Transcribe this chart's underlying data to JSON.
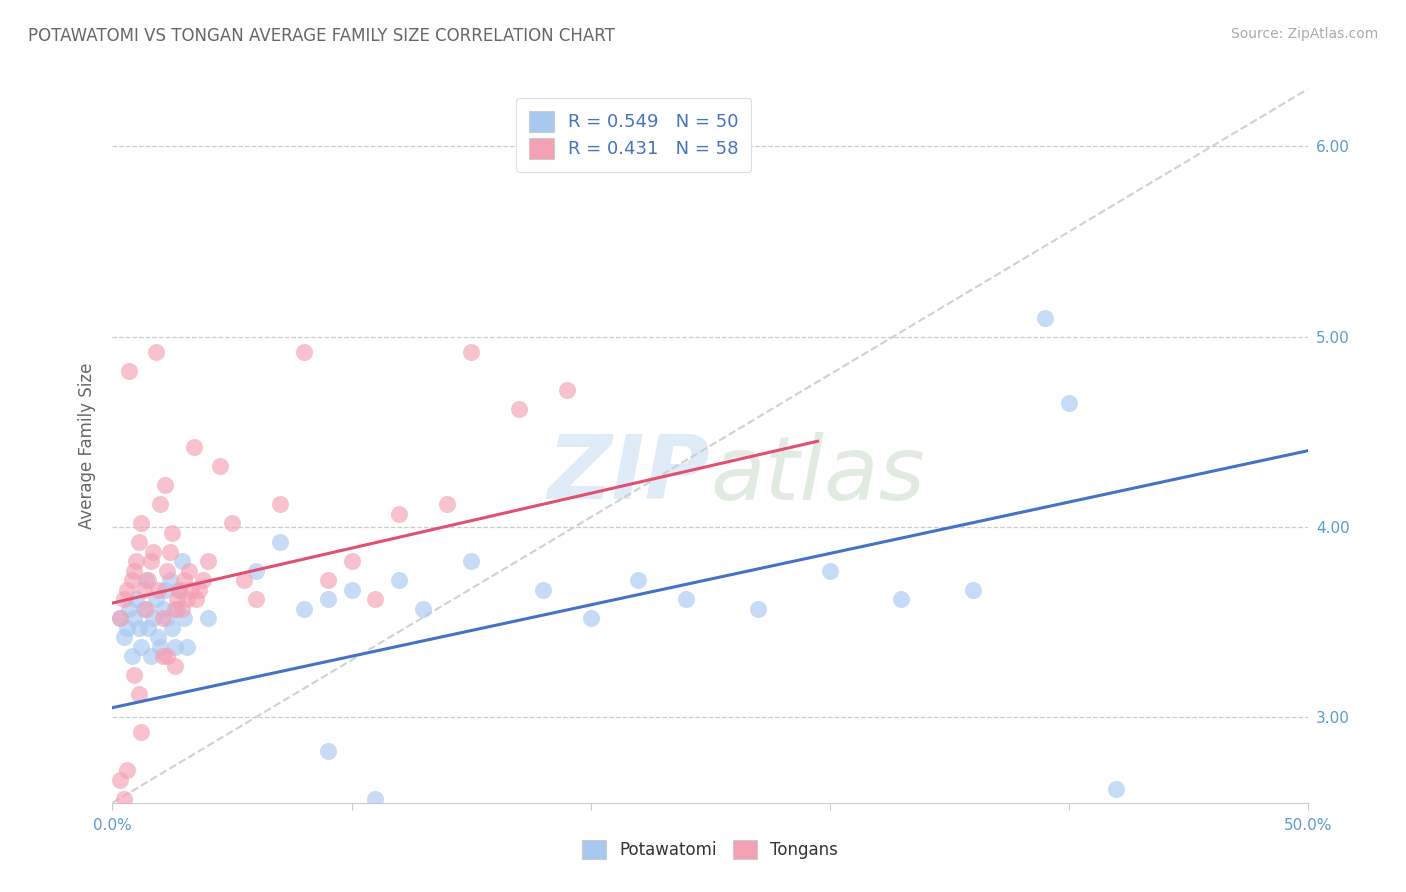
{
  "title": "POTAWATOMI VS TONGAN AVERAGE FAMILY SIZE CORRELATION CHART",
  "source_text": "Source: ZipAtlas.com",
  "ylabel": "Average Family Size",
  "xmin": 0.0,
  "xmax": 0.5,
  "ymin": 2.55,
  "ymax": 6.3,
  "yticks": [
    3.0,
    4.0,
    5.0,
    6.0
  ],
  "xticks": [
    0.0,
    0.1,
    0.2,
    0.3,
    0.4,
    0.5
  ],
  "xtick_labels_show": [
    "0.0%",
    "",
    "",
    "",
    "",
    "50.0%"
  ],
  "blue_color": "#A8C8F0",
  "pink_color": "#F4A0B5",
  "blue_R": 0.549,
  "blue_N": 50,
  "pink_R": 0.431,
  "pink_N": 58,
  "title_color": "#666666",
  "axis_label_color": "#666666",
  "tick_color": "#5B9BD5",
  "grid_color": "#CCCCCC",
  "ref_line_color": "#CCCCCC",
  "blue_line_color": "#4472C4",
  "pink_line_color": "#E05070",
  "blue_line_x": [
    0.0,
    0.5
  ],
  "blue_line_y": [
    3.05,
    4.4
  ],
  "pink_line_x": [
    0.0,
    0.295
  ],
  "pink_line_y": [
    3.6,
    4.45
  ],
  "ref_line_x": [
    0.0,
    0.5
  ],
  "ref_line_y": [
    2.55,
    6.3
  ],
  "blue_scatter": [
    [
      0.003,
      3.52
    ],
    [
      0.005,
      3.42
    ],
    [
      0.006,
      3.47
    ],
    [
      0.007,
      3.57
    ],
    [
      0.008,
      3.32
    ],
    [
      0.009,
      3.52
    ],
    [
      0.01,
      3.62
    ],
    [
      0.011,
      3.47
    ],
    [
      0.012,
      3.37
    ],
    [
      0.013,
      3.57
    ],
    [
      0.014,
      3.72
    ],
    [
      0.015,
      3.47
    ],
    [
      0.016,
      3.32
    ],
    [
      0.017,
      3.52
    ],
    [
      0.018,
      3.62
    ],
    [
      0.019,
      3.42
    ],
    [
      0.02,
      3.37
    ],
    [
      0.021,
      3.57
    ],
    [
      0.022,
      3.67
    ],
    [
      0.023,
      3.52
    ],
    [
      0.024,
      3.72
    ],
    [
      0.025,
      3.47
    ],
    [
      0.026,
      3.37
    ],
    [
      0.027,
      3.57
    ],
    [
      0.028,
      3.67
    ],
    [
      0.029,
      3.82
    ],
    [
      0.03,
      3.52
    ],
    [
      0.031,
      3.37
    ],
    [
      0.04,
      3.52
    ],
    [
      0.06,
      3.77
    ],
    [
      0.07,
      3.92
    ],
    [
      0.08,
      3.57
    ],
    [
      0.09,
      3.62
    ],
    [
      0.1,
      3.67
    ],
    [
      0.12,
      3.72
    ],
    [
      0.13,
      3.57
    ],
    [
      0.15,
      3.82
    ],
    [
      0.18,
      3.67
    ],
    [
      0.2,
      3.52
    ],
    [
      0.22,
      3.72
    ],
    [
      0.24,
      3.62
    ],
    [
      0.27,
      3.57
    ],
    [
      0.3,
      3.77
    ],
    [
      0.33,
      3.62
    ],
    [
      0.36,
      3.67
    ],
    [
      0.39,
      5.1
    ],
    [
      0.4,
      4.65
    ],
    [
      0.42,
      2.62
    ],
    [
      0.09,
      2.82
    ],
    [
      0.11,
      2.57
    ]
  ],
  "pink_scatter": [
    [
      0.003,
      3.52
    ],
    [
      0.005,
      3.62
    ],
    [
      0.006,
      3.67
    ],
    [
      0.007,
      4.82
    ],
    [
      0.008,
      3.72
    ],
    [
      0.009,
      3.77
    ],
    [
      0.01,
      3.82
    ],
    [
      0.011,
      3.92
    ],
    [
      0.012,
      4.02
    ],
    [
      0.013,
      3.67
    ],
    [
      0.014,
      3.57
    ],
    [
      0.015,
      3.72
    ],
    [
      0.016,
      3.82
    ],
    [
      0.017,
      3.87
    ],
    [
      0.018,
      4.92
    ],
    [
      0.019,
      3.67
    ],
    [
      0.02,
      4.12
    ],
    [
      0.021,
      3.52
    ],
    [
      0.022,
      4.22
    ],
    [
      0.023,
      3.77
    ],
    [
      0.024,
      3.87
    ],
    [
      0.025,
      3.97
    ],
    [
      0.026,
      3.57
    ],
    [
      0.027,
      3.62
    ],
    [
      0.028,
      3.67
    ],
    [
      0.029,
      3.57
    ],
    [
      0.03,
      3.72
    ],
    [
      0.031,
      3.62
    ],
    [
      0.032,
      3.77
    ],
    [
      0.033,
      3.67
    ],
    [
      0.034,
      4.42
    ],
    [
      0.035,
      3.62
    ],
    [
      0.036,
      3.67
    ],
    [
      0.038,
      3.72
    ],
    [
      0.04,
      3.82
    ],
    [
      0.045,
      4.32
    ],
    [
      0.05,
      4.02
    ],
    [
      0.055,
      3.72
    ],
    [
      0.06,
      3.62
    ],
    [
      0.07,
      4.12
    ],
    [
      0.08,
      4.92
    ],
    [
      0.09,
      3.72
    ],
    [
      0.1,
      3.82
    ],
    [
      0.11,
      3.62
    ],
    [
      0.12,
      4.07
    ],
    [
      0.14,
      4.12
    ],
    [
      0.15,
      4.92
    ],
    [
      0.17,
      4.62
    ],
    [
      0.19,
      4.72
    ],
    [
      0.003,
      2.67
    ],
    [
      0.005,
      2.57
    ],
    [
      0.006,
      2.72
    ],
    [
      0.009,
      3.22
    ],
    [
      0.011,
      3.12
    ],
    [
      0.012,
      2.92
    ],
    [
      0.021,
      3.32
    ],
    [
      0.023,
      3.32
    ],
    [
      0.026,
      3.27
    ]
  ]
}
